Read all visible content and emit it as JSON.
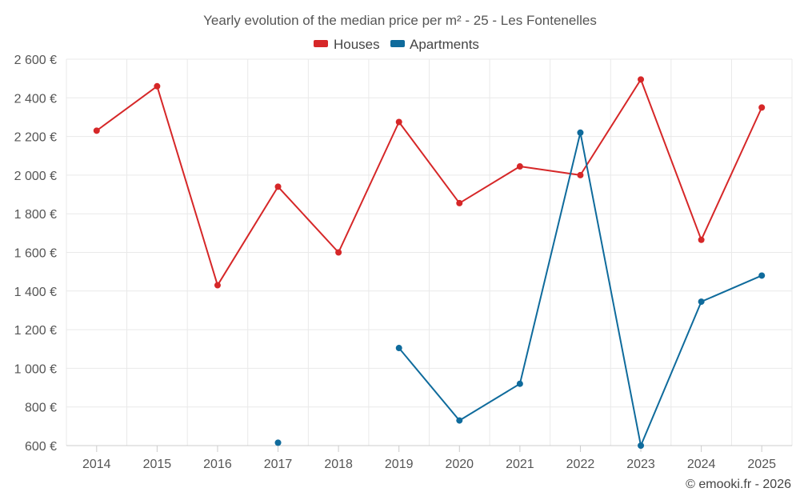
{
  "chart_data": {
    "type": "line",
    "title": "Yearly evolution of the median price per m² - 25 - Les Fontenelles",
    "xlabel": "",
    "ylabel": "",
    "categories": [
      "2014",
      "2015",
      "2016",
      "2017",
      "2018",
      "2019",
      "2020",
      "2021",
      "2022",
      "2023",
      "2024",
      "2025"
    ],
    "y_ticks": [
      600,
      800,
      1000,
      1200,
      1400,
      1600,
      1800,
      2000,
      2200,
      2400,
      2600
    ],
    "y_tick_labels": [
      "600 €",
      "800 €",
      "1 000 €",
      "1 200 €",
      "1 400 €",
      "1 600 €",
      "1 800 €",
      "2 000 €",
      "2 200 €",
      "2 400 €",
      "2 600 €"
    ],
    "ylim": [
      600,
      2600
    ],
    "grid": true,
    "legend_position": "top-center",
    "series": [
      {
        "name": "Houses",
        "color": "#d62728",
        "values": [
          2230,
          2460,
          1430,
          1940,
          1600,
          2275,
          1855,
          2045,
          2000,
          2495,
          1665,
          2350
        ]
      },
      {
        "name": "Apartments",
        "color": "#0f6b9c",
        "values": [
          null,
          null,
          null,
          615,
          null,
          1105,
          730,
          920,
          2220,
          600,
          1345,
          1480
        ]
      }
    ],
    "credit": "© emooki.fr - 2026"
  }
}
